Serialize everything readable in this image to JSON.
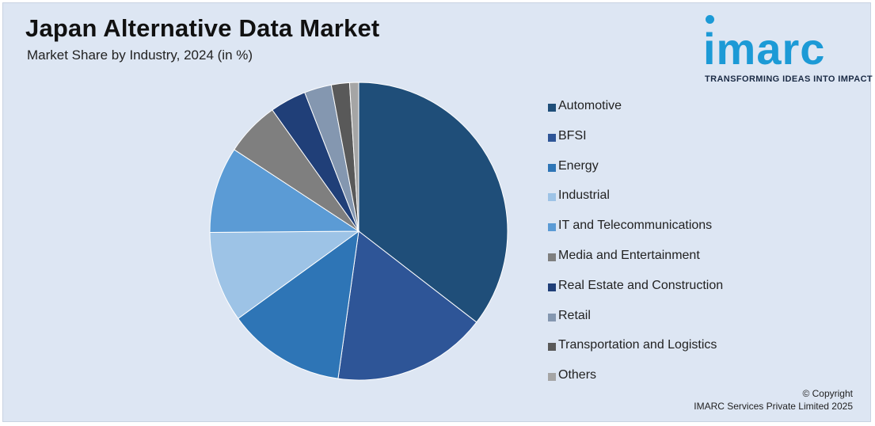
{
  "header": {
    "title": "Japan Alternative Data Market",
    "subtitle": "Market Share by Industry, 2024 (in %)"
  },
  "logo": {
    "wordmark": "imarc",
    "tagline": "TRANSFORMING IDEAS INTO IMPACT"
  },
  "footer": {
    "copyright": "© Copyright",
    "company": "IMARC Services Private Limited 2025"
  },
  "chart_data": {
    "type": "pie",
    "title": "Japan Alternative Data Market",
    "subtitle": "Market Share by Industry, 2024 (in %)",
    "legend_position": "right",
    "categories": [
      "Automotive",
      "BFSI",
      "Energy",
      "Industrial",
      "IT and Telecommunications",
      "Media and Entertainment",
      "Real Estate and Construction",
      "Retail",
      "Transportation and Logistics",
      "Others"
    ],
    "values": [
      36,
      17,
      13,
      10,
      9.5,
      6,
      4,
      3,
      2,
      1
    ],
    "colors": [
      "#1f4e79",
      "#2e5597",
      "#2e75b6",
      "#9dc3e6",
      "#5b9bd5",
      "#7f7f7f",
      "#203f78",
      "#8497b0",
      "#595959",
      "#a5a5a5"
    ],
    "edge_color": "#ffffff"
  }
}
